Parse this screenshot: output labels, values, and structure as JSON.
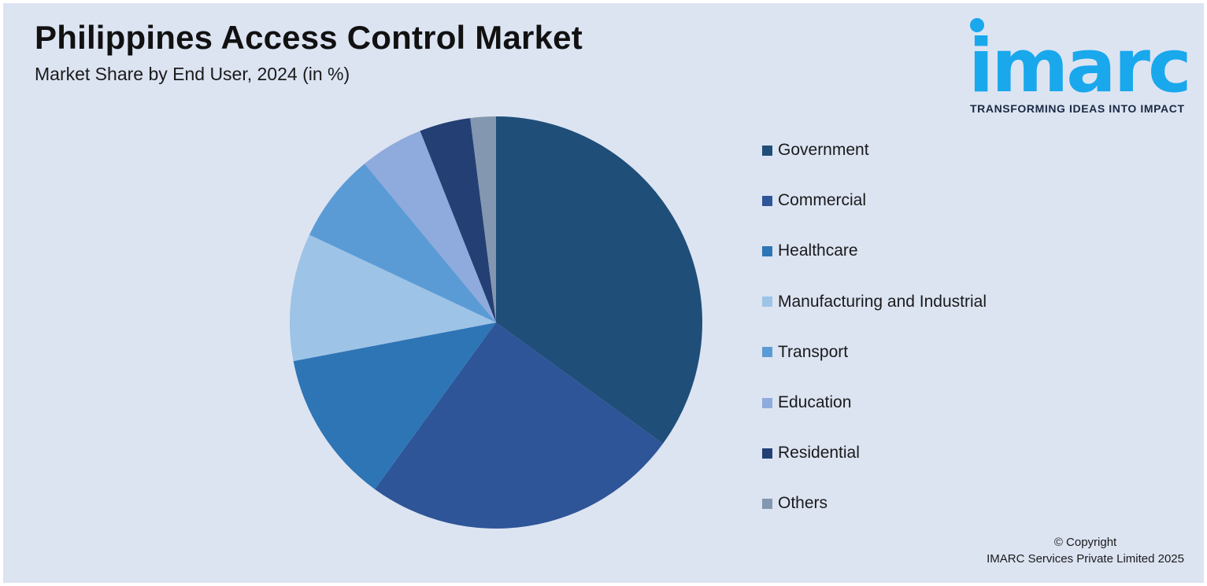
{
  "header": {
    "title": "Philippines Access Control Market",
    "subtitle": "Market Share by End User, 2024 (in %)"
  },
  "logo": {
    "wordmark": "imarc",
    "tagline": "TRANSFORMING IDEAS INTO IMPACT",
    "color": "#19a8ec"
  },
  "chart_data": {
    "type": "pie",
    "title": "Philippines Access Control Market",
    "subtitle": "Market Share by End User, 2024 (in %)",
    "legend_position": "right",
    "slices": [
      {
        "label": "Government",
        "value": 35,
        "color": "#1f4e79"
      },
      {
        "label": "Commercial",
        "value": 25,
        "color": "#2e5597"
      },
      {
        "label": "Healthcare",
        "value": 12,
        "color": "#2e75b6"
      },
      {
        "label": "Manufacturing and Industrial",
        "value": 10,
        "color": "#9dc3e6"
      },
      {
        "label": "Transport",
        "value": 7,
        "color": "#5b9bd5"
      },
      {
        "label": "Education",
        "value": 5,
        "color": "#8faadc"
      },
      {
        "label": "Residential",
        "value": 4,
        "color": "#233f74"
      },
      {
        "label": "Others",
        "value": 2,
        "color": "#8497b0"
      }
    ]
  },
  "footer": {
    "copyright_line1": "© Copyright",
    "copyright_line2": "IMARC Services Private Limited 2025"
  }
}
